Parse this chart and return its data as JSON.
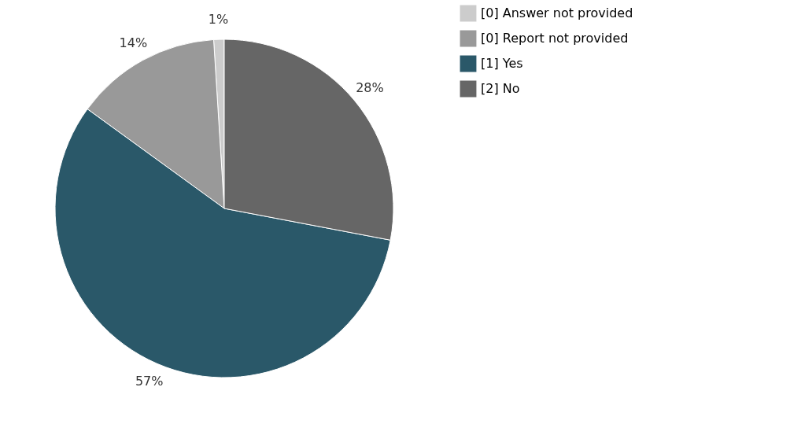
{
  "chart_data": {
    "type": "pie",
    "categories": [
      "[0] Answer not provided",
      "[0] Report not provided",
      "[1] Yes",
      "[2] No"
    ],
    "values": [
      1,
      14,
      57,
      28
    ],
    "colors": [
      "#cccccc",
      "#999999",
      "#2a5869",
      "#666666"
    ],
    "value_labels": [
      "1%",
      "14%",
      "57%",
      "28%"
    ],
    "legend": "right"
  }
}
